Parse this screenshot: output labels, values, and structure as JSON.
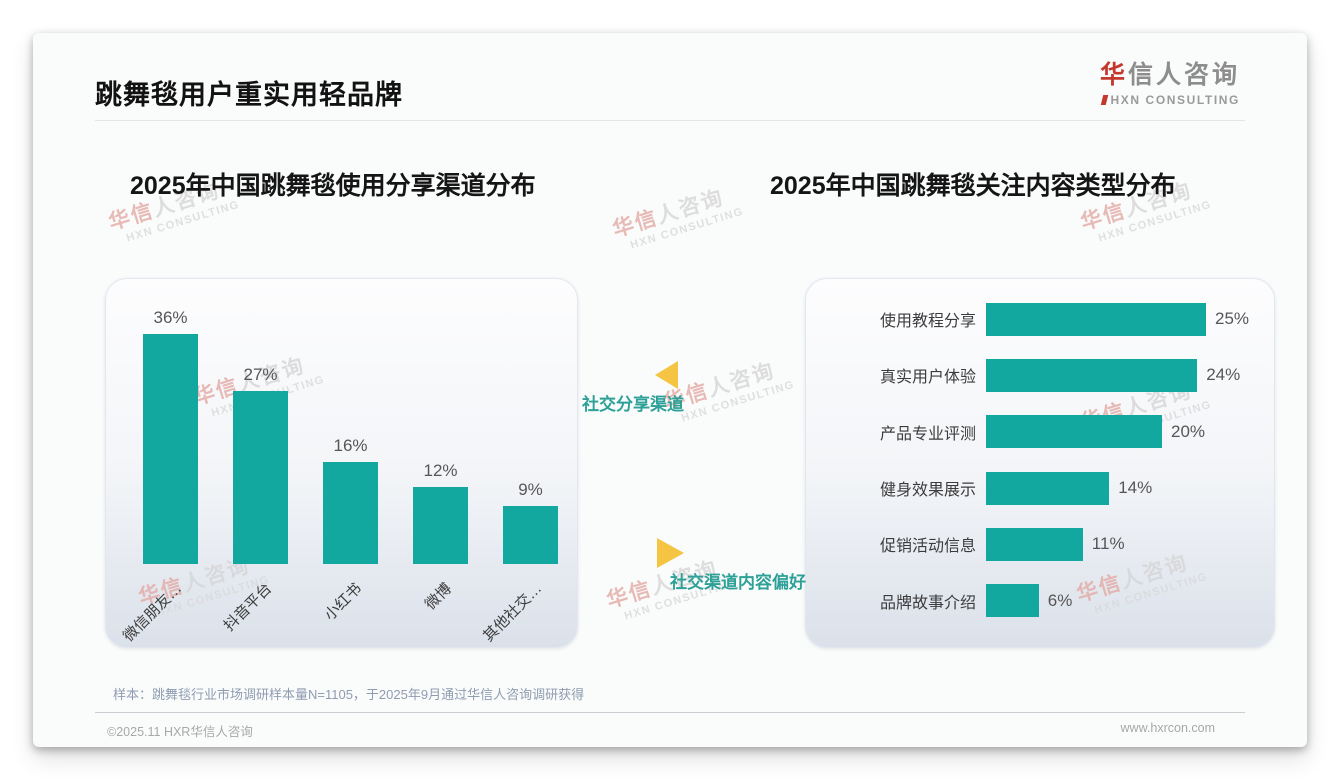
{
  "header": {
    "title": "跳舞毯用户重实用轻品牌",
    "logo": {
      "accent": "华",
      "rest": "信人咨询",
      "subtitle": "HXN CONSULTING"
    }
  },
  "annotations": {
    "share_channel_label": "社交分享渠道",
    "content_preference_label": "社交渠道内容偏好"
  },
  "watermark": {
    "accent": "华信",
    "rest": "人咨询",
    "line2": "HXN CONSULTING"
  },
  "footnote": "样本：跳舞毯行业市场调研样本量N=1105，于2025年9月通过华信人咨询调研获得",
  "footer": {
    "left": "©2025.11 HXR华信人咨询",
    "right": "www.hxrcon.com"
  },
  "colors": {
    "teal": "#12A79F",
    "yellow": "#F6C443",
    "logo_red": "#C4392E",
    "label_teal": "#2DA197"
  },
  "chart_data": [
    {
      "type": "bar",
      "orientation": "vertical",
      "title": "2025年中国跳舞毯使用分享渠道分布",
      "unit": "%",
      "categories": [
        "微信朋友…",
        "抖音平台",
        "小红书",
        "微博",
        "其他社交…"
      ],
      "values": [
        36,
        27,
        16,
        12,
        9
      ],
      "value_labels": [
        "36%",
        "27%",
        "16%",
        "12%",
        "9%"
      ],
      "ylim": [
        0,
        40
      ],
      "grid": false,
      "legend": "none"
    },
    {
      "type": "bar",
      "orientation": "horizontal",
      "title": "2025年中国跳舞毯关注内容类型分布",
      "unit": "%",
      "categories": [
        "使用教程分享",
        "真实用户体验",
        "产品专业评测",
        "健身效果展示",
        "促销活动信息",
        "品牌故事介绍"
      ],
      "values": [
        25,
        24,
        20,
        14,
        11,
        6
      ],
      "value_labels": [
        "25%",
        "24%",
        "20%",
        "14%",
        "11%",
        "6%"
      ],
      "xlim": [
        0,
        28
      ],
      "grid": false,
      "legend": "none"
    }
  ]
}
